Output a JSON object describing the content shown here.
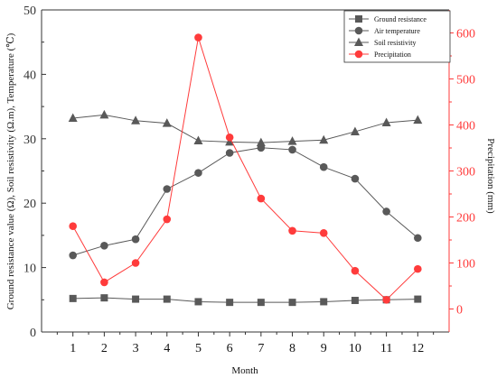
{
  "chart_data": {
    "type": "line",
    "x": [
      1,
      2,
      3,
      4,
      5,
      6,
      7,
      8,
      9,
      10,
      11,
      12
    ],
    "xlabel": "Month",
    "xlim": [
      0,
      13
    ],
    "ylabel_left": "Ground resistance value (Ω), Soil resistivity (Ω.m), Temperature (℃)",
    "ylim_left": [
      0,
      50
    ],
    "yticks_left": [
      0,
      10,
      20,
      30,
      40,
      50
    ],
    "ylabel_right": "Precipitation (mm)",
    "ylim_right": [
      -50,
      650
    ],
    "yticks_right": [
      0,
      100,
      200,
      300,
      400,
      500,
      600
    ],
    "legend_position": "top-right",
    "grid": false,
    "series": [
      {
        "name": "Ground resistance",
        "axis": "left",
        "marker": "square",
        "color": "#595959",
        "values": [
          5.2,
          5.3,
          5.1,
          5.1,
          4.7,
          4.6,
          4.6,
          4.6,
          4.7,
          4.9,
          5.0,
          5.1
        ]
      },
      {
        "name": "Air temperature",
        "axis": "left",
        "marker": "circle",
        "color": "#595959",
        "values": [
          11.9,
          13.4,
          14.4,
          22.2,
          24.7,
          27.8,
          28.6,
          28.3,
          25.6,
          23.8,
          18.7,
          14.6
        ]
      },
      {
        "name": "Soil resistivity",
        "axis": "left",
        "marker": "triangle",
        "color": "#595959",
        "values": [
          33.2,
          33.7,
          32.8,
          32.4,
          29.7,
          29.5,
          29.4,
          29.6,
          29.8,
          31.1,
          32.5,
          32.9
        ]
      },
      {
        "name": "Precipitation",
        "axis": "right",
        "marker": "circle",
        "color": "#ff3b3b",
        "values": [
          180,
          58,
          100,
          195,
          590,
          373,
          240,
          170,
          165,
          83,
          20,
          87
        ]
      }
    ]
  }
}
